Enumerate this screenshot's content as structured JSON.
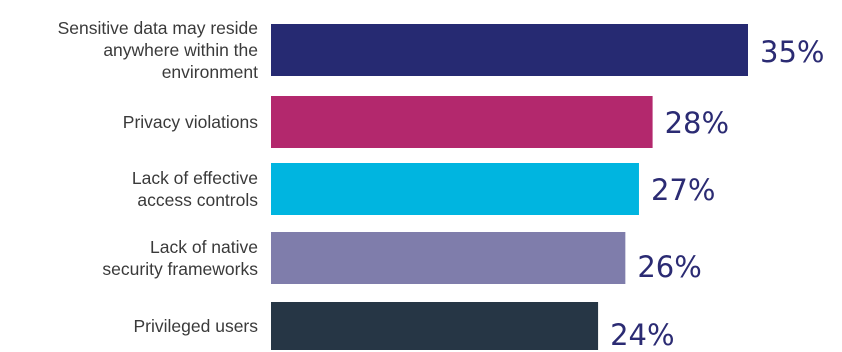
{
  "chart_data": {
    "type": "bar",
    "orientation": "horizontal",
    "categories": [
      [
        "Sensitive data may reside",
        "anywhere within the",
        "environment"
      ],
      [
        "Privacy violations"
      ],
      [
        "Lack of effective",
        "access controls"
      ],
      [
        "Lack of native",
        "security frameworks"
      ],
      [
        "Privileged users"
      ]
    ],
    "values": [
      35,
      28,
      27,
      26,
      24
    ],
    "value_labels": [
      "35%",
      "28%",
      "27%",
      "26%",
      "24%"
    ],
    "colors": [
      "#262a72",
      "#b3286d",
      "#00b5e0",
      "#7f7dab",
      "#263645"
    ],
    "value_label_color": "#2b2b73",
    "xlim": [
      0,
      35
    ],
    "grid": false,
    "legend": "none"
  }
}
